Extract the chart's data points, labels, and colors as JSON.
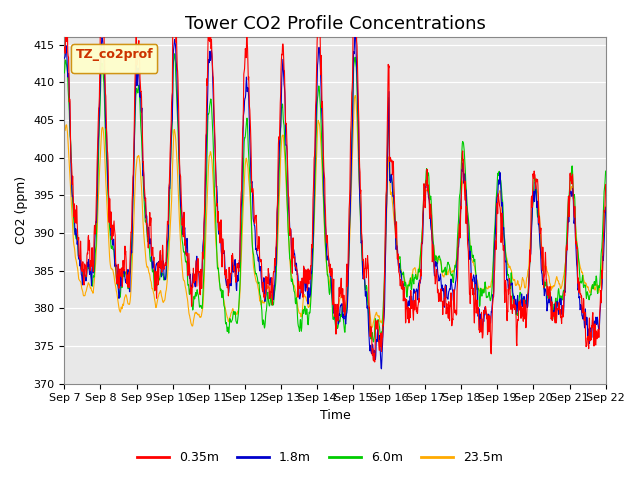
{
  "title": "Tower CO2 Profile Concentrations",
  "xlabel": "Time",
  "ylabel": "CO2 (ppm)",
  "ylim": [
    370,
    416
  ],
  "yticks": [
    370,
    375,
    380,
    385,
    390,
    395,
    400,
    405,
    410,
    415
  ],
  "legend_label": "TZ_co2prof",
  "series_labels": [
    "0.35m",
    "1.8m",
    "6.0m",
    "23.5m"
  ],
  "series_colors": [
    "#ff0000",
    "#0000cc",
    "#00cc00",
    "#ffaa00"
  ],
  "xtick_labels": [
    "Sep 7",
    "Sep 8",
    "Sep 9",
    "Sep 10",
    "Sep 11",
    "Sep 12",
    "Sep 13",
    "Sep 14",
    "Sep 15",
    "Sep 16",
    "Sep 17",
    "Sep 18",
    "Sep 19",
    "Sep 20",
    "Sep 21",
    "Sep 22"
  ],
  "axes_bg": "#e8e8e8",
  "fig_bg": "#ffffff",
  "title_fontsize": 13,
  "axis_fontsize": 9,
  "tick_fontsize": 8,
  "legend_fontsize": 9,
  "linewidth": 0.8
}
